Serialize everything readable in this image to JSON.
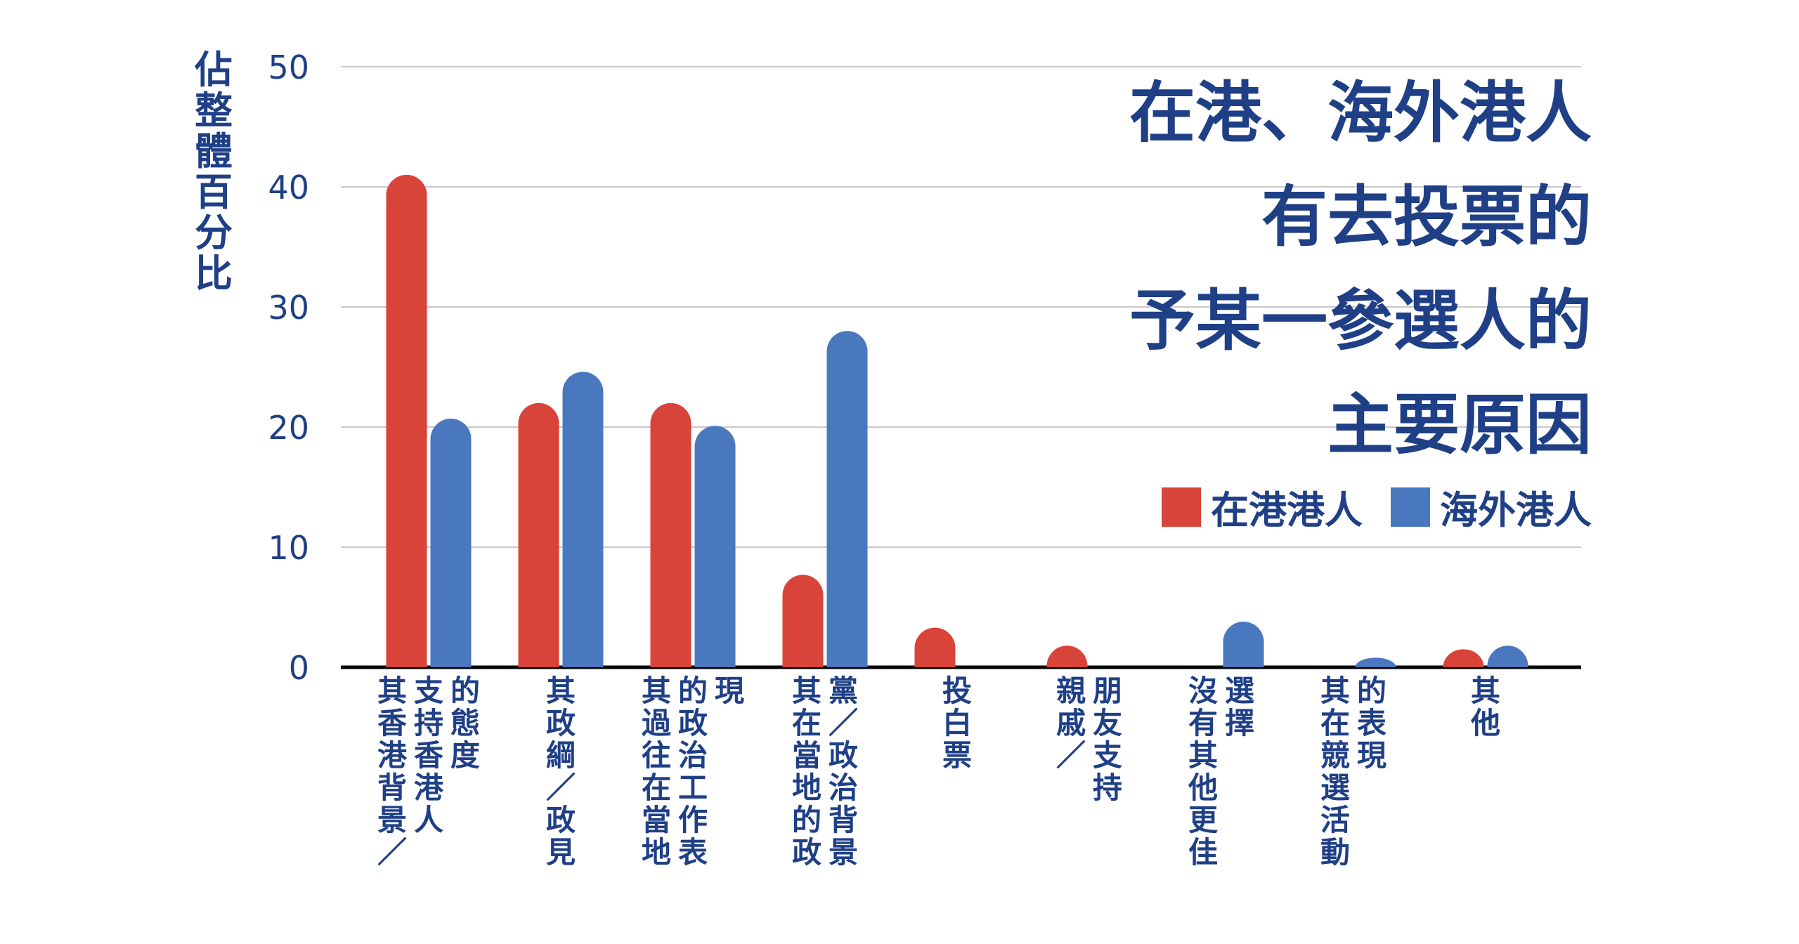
{
  "chart_data": {
    "type": "bar",
    "title": [
      "在港、海外港人",
      "有去投票的",
      "予某一參選人的",
      "主要原因"
    ],
    "ylabel": "佔整體百分比",
    "ylim": [
      0,
      50
    ],
    "yticks": [
      "0",
      "10",
      "20",
      "30",
      "40",
      "50"
    ],
    "grid": true,
    "legend_position": "right",
    "categories": [
      [
        "其香港背景／",
        "支持香港人",
        "的態度"
      ],
      [
        "其政綱／政見"
      ],
      [
        "其過往在當地",
        "的政治工作表",
        "現"
      ],
      [
        "其在當地的政",
        "黨／政治背景"
      ],
      [
        "投白票"
      ],
      [
        "親戚／",
        "朋友支持"
      ],
      [
        "沒有其他更佳",
        "選擇"
      ],
      [
        "其在競選活動",
        "的表現"
      ],
      [
        "其他"
      ]
    ],
    "series": [
      {
        "name": "在港港人",
        "color": "#d9443a",
        "values": [
          41,
          22,
          22,
          7.7,
          3.3,
          1.8,
          0,
          0,
          1.5
        ]
      },
      {
        "name": "海外港人",
        "color": "#4a78bf",
        "values": [
          20.7,
          24.6,
          20.1,
          28,
          0,
          0,
          3.8,
          0.8,
          1.8
        ]
      }
    ]
  }
}
